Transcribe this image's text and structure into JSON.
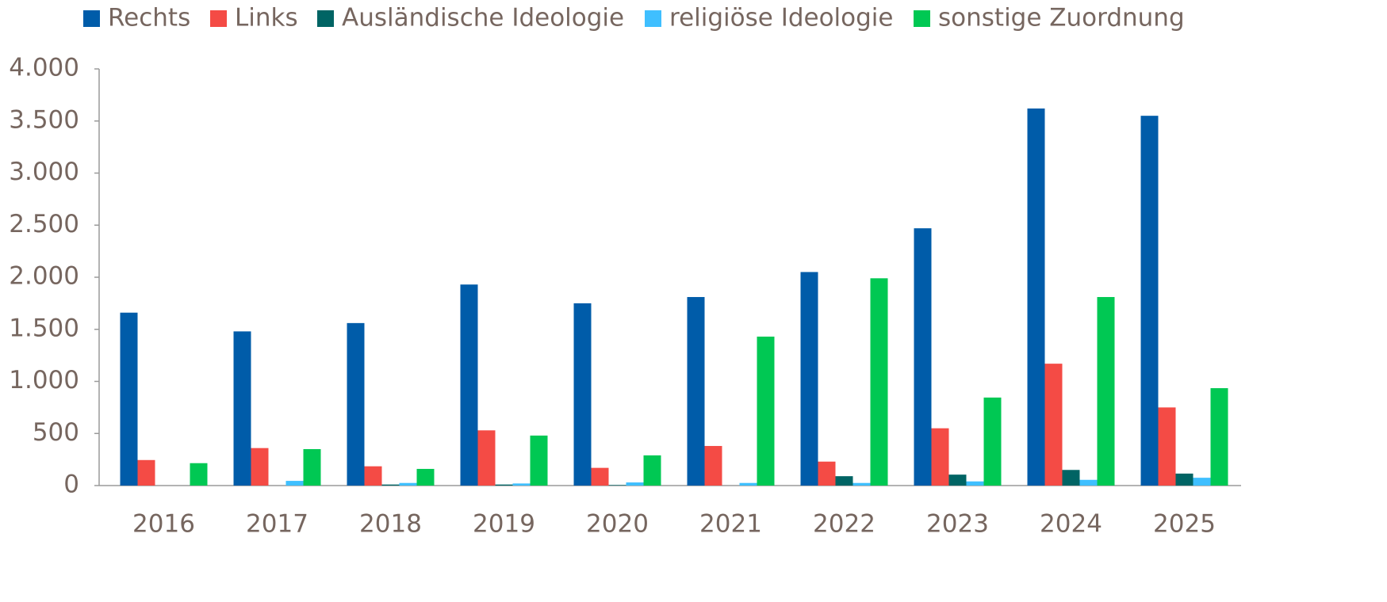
{
  "chart_data": {
    "type": "bar",
    "categories": [
      "2016",
      "2017",
      "2018",
      "2019",
      "2020",
      "2021",
      "2022",
      "2023",
      "2024",
      "2025"
    ],
    "series": [
      {
        "name": "Rechts",
        "color": "#005ca9",
        "values": [
          1660,
          1480,
          1560,
          1930,
          1750,
          1810,
          2050,
          2470,
          3620,
          3550
        ]
      },
      {
        "name": "Links",
        "color": "#f44b45",
        "values": [
          245,
          360,
          185,
          530,
          170,
          380,
          230,
          550,
          1170,
          750
        ]
      },
      {
        "name": "Ausländische Ideologie",
        "color": "#006464",
        "values": [
          0,
          0,
          10,
          10,
          5,
          0,
          90,
          105,
          150,
          115
        ]
      },
      {
        "name": "religiöse Ideologie",
        "color": "#3fbfff",
        "values": [
          0,
          45,
          25,
          20,
          30,
          25,
          25,
          40,
          55,
          75
        ]
      },
      {
        "name": "sonstige Zuordnung",
        "color": "#00c853",
        "values": [
          215,
          350,
          160,
          480,
          290,
          1430,
          1990,
          845,
          1810,
          935
        ]
      }
    ],
    "ylim": [
      0,
      4000
    ],
    "yticks": [
      0,
      500,
      {
        "value": 1000,
        "label": "1.000"
      },
      {
        "value": 1500,
        "label": "1.500"
      },
      {
        "value": 2000,
        "label": "2.000"
      },
      {
        "value": 2500,
        "label": "2.500"
      },
      {
        "value": 3000,
        "label": "3.000"
      },
      {
        "value": 3500,
        "label": "3.500"
      },
      {
        "value": 4000,
        "label": "4.000"
      }
    ],
    "grid": false,
    "legend": "top"
  }
}
